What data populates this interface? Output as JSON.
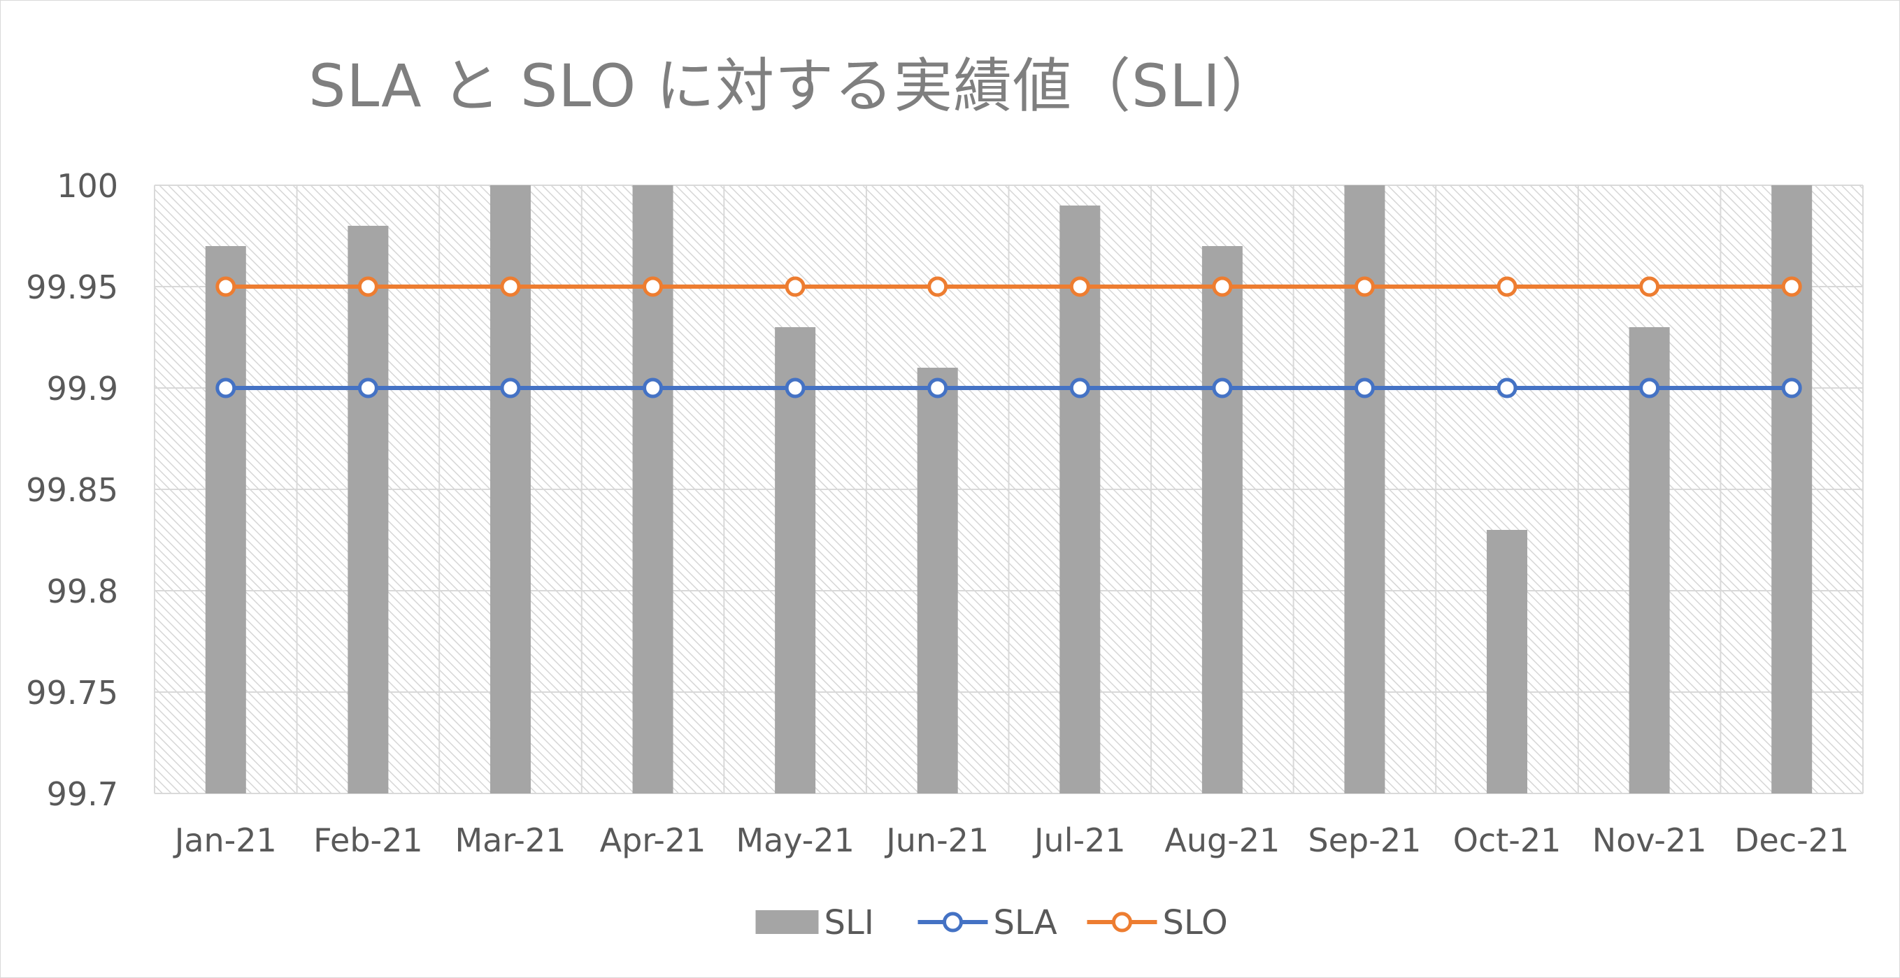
{
  "chart_data": {
    "type": "bar",
    "title": "SLA と SLO に対する実績値（SLI）",
    "xlabel": "",
    "ylabel": "",
    "categories": [
      "Jan-21",
      "Feb-21",
      "Mar-21",
      "Apr-21",
      "May-21",
      "Jun-21",
      "Jul-21",
      "Aug-21",
      "Sep-21",
      "Oct-21",
      "Nov-21",
      "Dec-21"
    ],
    "ylim": [
      99.7,
      100
    ],
    "yticks": [
      100,
      99.95,
      99.9,
      99.85,
      99.8,
      99.75,
      99.7
    ],
    "ytick_labels": [
      "100",
      "99.95",
      "99.9",
      "99.85",
      "99.8",
      "99.75",
      "99.7"
    ],
    "grid": true,
    "legend_position": "bottom",
    "series": [
      {
        "name": "SLI",
        "kind": "bar",
        "color": "#a5a5a5",
        "values": [
          99.97,
          99.98,
          100,
          100,
          99.93,
          99.91,
          99.99,
          99.97,
          100,
          99.83,
          99.93,
          100
        ]
      },
      {
        "name": "SLA",
        "kind": "line",
        "color": "#4472c4",
        "values": [
          99.9,
          99.9,
          99.9,
          99.9,
          99.9,
          99.9,
          99.9,
          99.9,
          99.9,
          99.9,
          99.9,
          99.9
        ]
      },
      {
        "name": "SLO",
        "kind": "line",
        "color": "#ed7d31",
        "values": [
          99.95,
          99.95,
          99.95,
          99.95,
          99.95,
          99.95,
          99.95,
          99.95,
          99.95,
          99.95,
          99.95,
          99.95
        ]
      }
    ]
  }
}
